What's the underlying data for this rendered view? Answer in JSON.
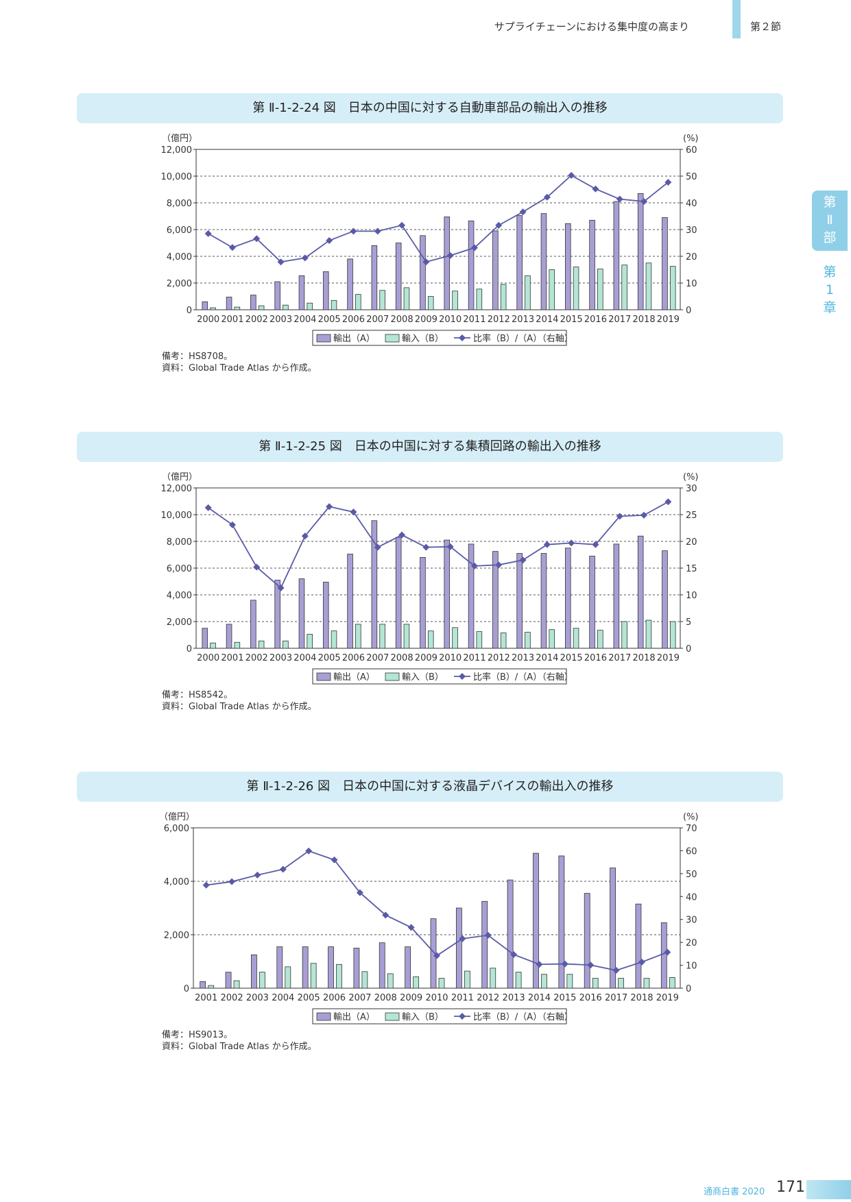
{
  "header": {
    "section_title": "サプライチェーンにおける集中度の高まり",
    "section_no": "第２節"
  },
  "side_tab": {
    "part": [
      "第",
      "Ⅱ",
      "部"
    ],
    "chapter": [
      "第",
      "1",
      "章"
    ]
  },
  "footer": {
    "label": "通商白書 2020",
    "page": "171"
  },
  "legend": {
    "export": "輸出（A）",
    "import": "輸入（B）",
    "ratio": "比率（B）/（A）（右軸）"
  },
  "colors": {
    "export": "#a79fd4",
    "import": "#b3e6d4",
    "ratio": "#5a5aa8",
    "banner": "#d6eef8",
    "accent": "#4fb6dd"
  },
  "charts": [
    {
      "figure_title": "第 Ⅱ-1-2-24 図　日本の中国に対する自動車部品の輸出入の推移",
      "left_unit": "（億円）",
      "right_unit": "(%)",
      "notes": [
        "備考：HS8708。",
        "資料：Global Trade Atlas から作成。"
      ],
      "chart_data": {
        "type": "bar",
        "categories": [
          "2000",
          "2001",
          "2002",
          "2003",
          "2004",
          "2005",
          "2006",
          "2007",
          "2008",
          "2009",
          "2010",
          "2011",
          "2012",
          "2013",
          "2014",
          "2015",
          "2016",
          "2017",
          "2018",
          "2019"
        ],
        "series": [
          {
            "name": "輸出（A）",
            "axis": "left",
            "values": [
              600,
              950,
              1100,
              2100,
              2550,
              2850,
              3800,
              4800,
              5000,
              5550,
              6950,
              6650,
              5900,
              7050,
              7200,
              6450,
              6700,
              8100,
              8700,
              6900
            ]
          },
          {
            "name": "輸入（B）",
            "axis": "left",
            "values": [
              150,
              200,
              300,
              350,
              500,
              700,
              1150,
              1450,
              1650,
              1000,
              1400,
              1550,
              1900,
              2550,
              3000,
              3200,
              3050,
              3350,
              3500,
              3250
            ]
          },
          {
            "name": "比率（B）/（A）（右軸）",
            "axis": "right",
            "type": "line",
            "values": [
              28.5,
              23.3,
              26.6,
              17.9,
              19.4,
              25.9,
              29.4,
              29.4,
              31.6,
              17.9,
              20.3,
              23.2,
              31.6,
              36.6,
              42.1,
              50.3,
              45.2,
              41.4,
              40.5,
              47.7
            ]
          }
        ],
        "ylim_left": [
          0,
          12000
        ],
        "yticks_left": [
          "0",
          "2,000",
          "4,000",
          "6,000",
          "8,000",
          "10,000",
          "12,000"
        ],
        "ylim_right": [
          0,
          60
        ],
        "yticks_right": [
          "0",
          "10",
          "20",
          "30",
          "40",
          "50",
          "60"
        ],
        "grid": true,
        "legend_position": "bottom"
      }
    },
    {
      "figure_title": "第 Ⅱ-1-2-25 図　日本の中国に対する集積回路の輸出入の推移",
      "left_unit": "（億円）",
      "right_unit": "(%)",
      "notes": [
        "備考：HS8542。",
        "資料：Global Trade Atlas から作成。"
      ],
      "chart_data": {
        "type": "bar",
        "categories": [
          "2000",
          "2001",
          "2002",
          "2003",
          "2004",
          "2005",
          "2006",
          "2007",
          "2008",
          "2009",
          "2010",
          "2011",
          "2012",
          "2013",
          "2014",
          "2015",
          "2016",
          "2017",
          "2018",
          "2019"
        ],
        "series": [
          {
            "name": "輸出（A）",
            "axis": "left",
            "values": [
              1500,
              1800,
              3600,
              5100,
              5200,
              4950,
              7050,
              9550,
              8300,
              6800,
              8100,
              7800,
              7250,
              7100,
              7100,
              7500,
              6900,
              7800,
              8400,
              7300
            ]
          },
          {
            "name": "輸入（B）",
            "axis": "left",
            "values": [
              400,
              450,
              550,
              550,
              1050,
              1300,
              1800,
              1800,
              1800,
              1300,
              1550,
              1250,
              1150,
              1200,
              1400,
              1500,
              1350,
              2000,
              2100,
              2000
            ]
          },
          {
            "name": "比率（B）/（A）（右軸）",
            "axis": "right",
            "type": "line",
            "values": [
              26.3,
              23.1,
              15.2,
              11.3,
              21.0,
              26.5,
              25.5,
              18.9,
              21.2,
              18.9,
              19.0,
              15.4,
              15.6,
              16.5,
              19.4,
              19.7,
              19.4,
              24.7,
              24.9,
              27.4
            ]
          }
        ],
        "ylim_left": [
          0,
          12000
        ],
        "yticks_left": [
          "0",
          "2,000",
          "4,000",
          "6,000",
          "8,000",
          "10,000",
          "12,000"
        ],
        "ylim_right": [
          0,
          30
        ],
        "yticks_right": [
          "0",
          "5",
          "10",
          "15",
          "20",
          "25",
          "30"
        ],
        "grid": true,
        "legend_position": "bottom"
      }
    },
    {
      "figure_title": "第 Ⅱ-1-2-26 図　日本の中国に対する液晶デバイスの輸出入の推移",
      "left_unit": "（億円）",
      "right_unit": "(%)",
      "notes": [
        "備考：HS9013。",
        "資料：Global Trade Atlas から作成。"
      ],
      "chart_data": {
        "type": "bar",
        "categories": [
          "2001",
          "2002",
          "2003",
          "2004",
          "2005",
          "2006",
          "2007",
          "2008",
          "2009",
          "2010",
          "2011",
          "2012",
          "2013",
          "2014",
          "2015",
          "2016",
          "2017",
          "2018",
          "2019"
        ],
        "series": [
          {
            "name": "輸出（A）",
            "axis": "left",
            "values": [
              250,
              600,
              1250,
              1550,
              1550,
              1550,
              1500,
              1700,
              1550,
              2600,
              3000,
              3250,
              4050,
              5050,
              4950,
              3550,
              4500,
              3150,
              2450
            ]
          },
          {
            "name": "輸入（B）",
            "axis": "left",
            "values": [
              100,
              280,
              600,
              800,
              930,
              890,
              620,
              540,
              430,
              370,
              640,
              750,
              600,
              520,
              520,
              370,
              370,
              370,
              400
            ]
          },
          {
            "name": "比率（B）/（A）（右軸）",
            "axis": "right",
            "type": "line",
            "values": [
              45.0,
              46.5,
              49.4,
              51.9,
              59.9,
              56.0,
              41.7,
              31.9,
              26.5,
              14.2,
              21.6,
              23.1,
              14.7,
              10.4,
              10.6,
              10.1,
              7.8,
              11.4,
              15.7
            ]
          }
        ],
        "ylim_left": [
          0,
          6000
        ],
        "yticks_left": [
          "0",
          "2,000",
          "4,000",
          "6,000"
        ],
        "ylim_right": [
          0,
          70
        ],
        "yticks_right": [
          "0",
          "10",
          "20",
          "30",
          "40",
          "50",
          "60",
          "70"
        ],
        "grid": true,
        "legend_position": "bottom"
      }
    }
  ]
}
